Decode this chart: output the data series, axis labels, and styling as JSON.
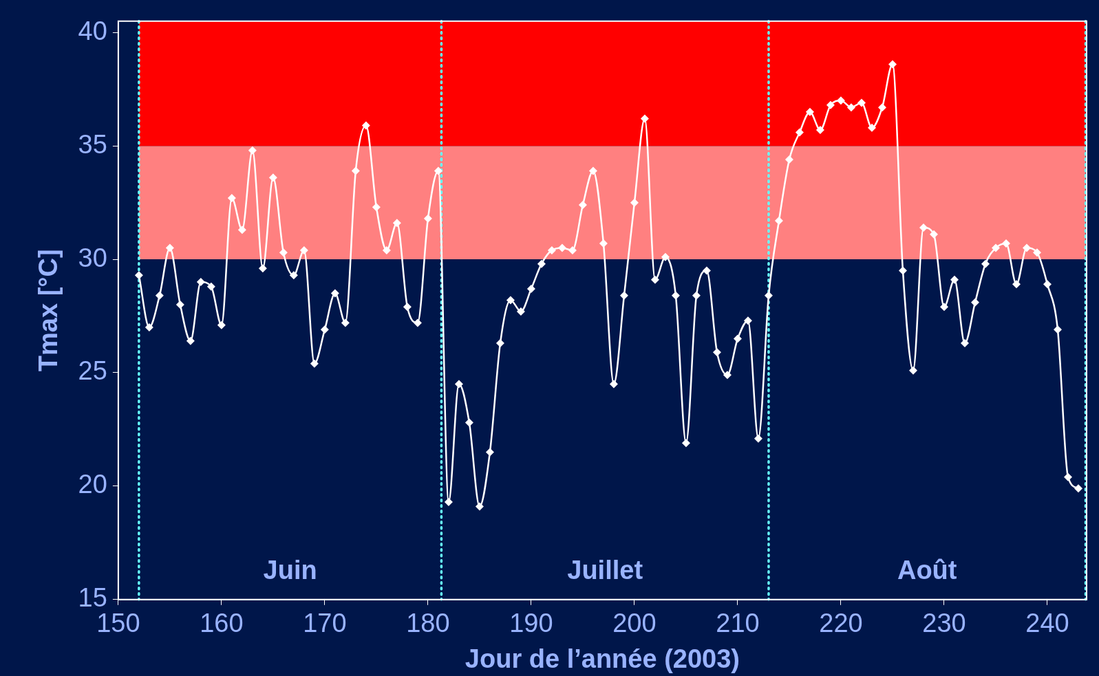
{
  "chart_data": {
    "type": "line",
    "xlabel": "Jour de l’année (2003)",
    "ylabel": "Tmax [°C]",
    "x": [
      152,
      153,
      154,
      155,
      156,
      157,
      158,
      159,
      160,
      161,
      162,
      163,
      164,
      165,
      166,
      167,
      168,
      169,
      170,
      171,
      172,
      173,
      174,
      175,
      176,
      177,
      178,
      179,
      180,
      181,
      182,
      183,
      184,
      185,
      186,
      187,
      188,
      189,
      190,
      191,
      192,
      193,
      194,
      195,
      196,
      197,
      198,
      199,
      200,
      201,
      202,
      203,
      204,
      205,
      206,
      207,
      208,
      209,
      210,
      211,
      212,
      213,
      214,
      215,
      216,
      217,
      218,
      219,
      220,
      221,
      222,
      223,
      224,
      225,
      226,
      227,
      228,
      229,
      230,
      231,
      232,
      233,
      234,
      235,
      236,
      237,
      238,
      239,
      240,
      241,
      242,
      243
    ],
    "series": [
      {
        "color": "#ffffff",
        "values": [
          29.3,
          27.0,
          28.4,
          30.5,
          28.0,
          26.4,
          29.0,
          28.8,
          27.1,
          32.7,
          31.3,
          34.8,
          29.6,
          33.6,
          30.3,
          29.3,
          30.4,
          25.4,
          26.9,
          28.5,
          27.2,
          33.9,
          35.9,
          32.3,
          30.4,
          31.6,
          27.9,
          27.2,
          31.8,
          33.9,
          19.3,
          24.5,
          22.8,
          19.1,
          21.5,
          26.3,
          28.2,
          27.7,
          28.7,
          29.8,
          30.4,
          30.5,
          30.4,
          32.4,
          33.9,
          30.7,
          24.5,
          28.4,
          32.5,
          36.2,
          29.1,
          30.1,
          28.4,
          21.9,
          28.4,
          29.5,
          25.9,
          24.9,
          26.5,
          27.3,
          22.1,
          28.4,
          31.7,
          34.4,
          35.6,
          36.5,
          35.7,
          36.8,
          37.0,
          36.7,
          36.9,
          35.8,
          36.7,
          38.6,
          29.5,
          25.1,
          31.4,
          31.1,
          27.9,
          29.1,
          26.3,
          28.1,
          29.8,
          30.5,
          30.7,
          28.9,
          30.5,
          30.3,
          28.9,
          26.9,
          20.4,
          19.9
        ]
      }
    ],
    "xlim": [
      150,
      243.8
    ],
    "xticks": [
      150,
      160,
      170,
      180,
      190,
      200,
      210,
      220,
      230,
      240
    ],
    "ylim": [
      15,
      40.5
    ],
    "yticks": [
      15,
      20,
      25,
      30,
      35,
      40
    ],
    "bands": [
      {
        "axis": "y",
        "from": 30,
        "to": 35,
        "color": "#ff8080"
      },
      {
        "axis": "y",
        "from": 35,
        "to": 40.5,
        "color": "#ff0000"
      }
    ],
    "ref_lines": [
      {
        "axis": "x",
        "value": 152,
        "color": "#66ffff",
        "line_style": "dotted"
      },
      {
        "axis": "x",
        "value": 181.3,
        "color": "#66ffff",
        "line_style": "dotted"
      },
      {
        "axis": "x",
        "value": 213,
        "color": "#66ffff",
        "line_style": "dotted"
      },
      {
        "axis": "x",
        "value": 243.7,
        "color": "#66ffff",
        "line_style": "dotted"
      }
    ],
    "annotations": [
      "Juin",
      "Juillet",
      "Août"
    ],
    "grid": false,
    "legend": false,
    "marker": "diamond",
    "line_style": "solid"
  }
}
